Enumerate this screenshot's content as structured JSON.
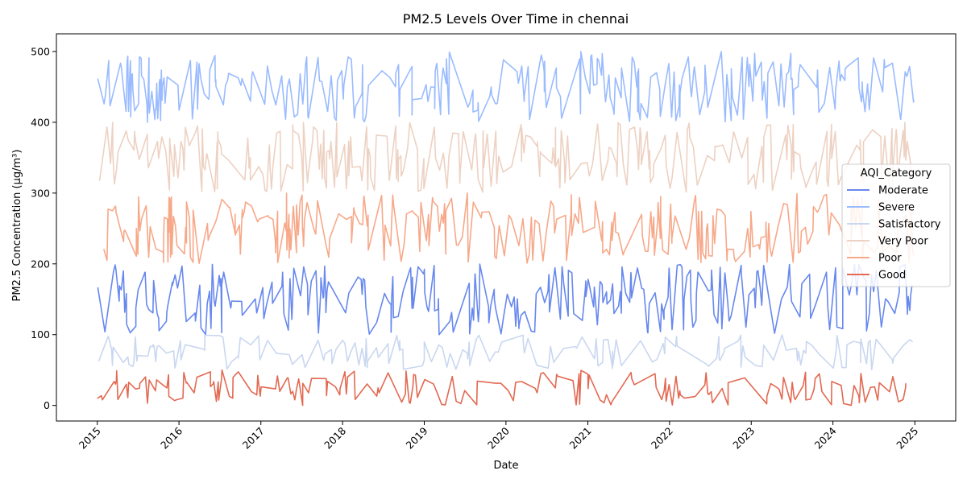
{
  "chart_data": {
    "type": "line",
    "title": "PM2.5 Levels Over Time in chennai",
    "xlabel": "Date",
    "ylabel": "PM2.5 Concentration (µg/m³)",
    "x_range": [
      "2015-01-01",
      "2025-01-01"
    ],
    "ylim": [
      -22,
      525
    ],
    "x_ticks": [
      "2015",
      "2016",
      "2017",
      "2018",
      "2019",
      "2020",
      "2021",
      "2022",
      "2023",
      "2024",
      "2025"
    ],
    "y_ticks": [
      0,
      100,
      200,
      300,
      400,
      500
    ],
    "grid": false,
    "legend": {
      "title": "AQI_Category",
      "placement": "center-right"
    },
    "series": [
      {
        "name": "Moderate",
        "color": "#6788ee",
        "range": [
          100,
          200
        ],
        "points": 290,
        "seed": 11
      },
      {
        "name": "Severe",
        "color": "#9abbff",
        "range": [
          400,
          500
        ],
        "points": 300,
        "seed": 23
      },
      {
        "name": "Satisfactory",
        "color": "#c9d7f0",
        "range": [
          50,
          100
        ],
        "points": 180,
        "seed": 37
      },
      {
        "name": "Very Poor",
        "color": "#edd1c2",
        "range": [
          300,
          400
        ],
        "points": 300,
        "seed": 41
      },
      {
        "name": "Poor",
        "color": "#f7a889",
        "range": [
          200,
          300
        ],
        "points": 300,
        "seed": 53
      },
      {
        "name": "Good",
        "color": "#e26952",
        "range": [
          0,
          50
        ],
        "points": 200,
        "seed": 67
      }
    ]
  }
}
